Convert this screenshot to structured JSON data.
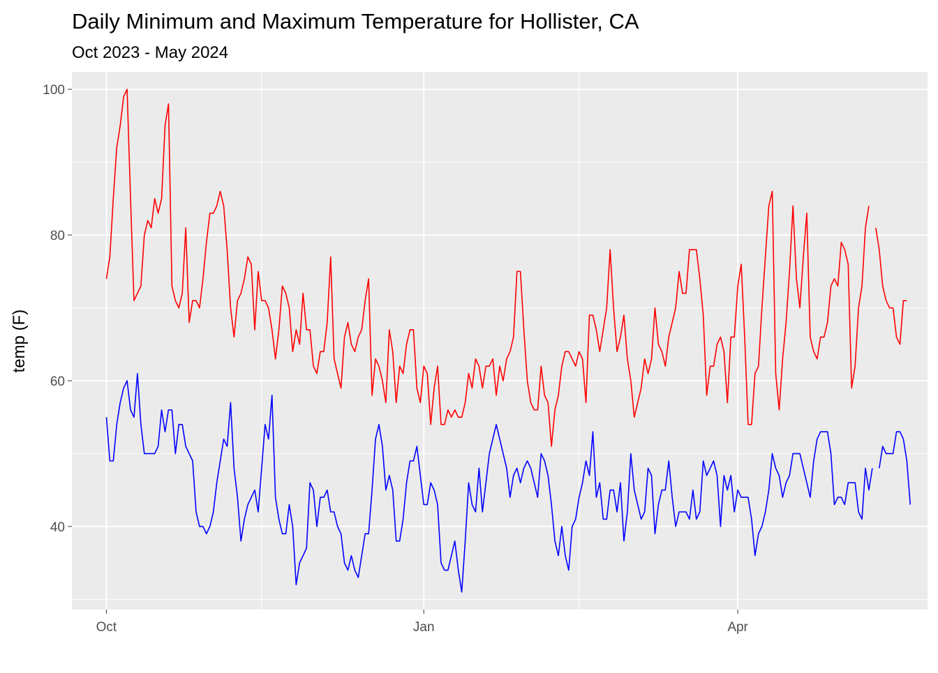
{
  "chart_data": {
    "type": "line",
    "title": "Daily Minimum and Maximum Temperature for Hollister, CA",
    "subtitle": "Oct 2023 - May 2024",
    "xlabel": "",
    "ylabel": "temp (F)",
    "x_start": "2023-10-01",
    "x_end": "2024-05-17",
    "xlim": [
      "2023-09-21",
      "2024-05-26"
    ],
    "ylim": [
      28.6,
      102.4
    ],
    "x_ticks": [
      {
        "date": "2023-10-01",
        "label": "Oct"
      },
      {
        "date": "2024-01-01",
        "label": "Jan"
      },
      {
        "date": "2024-04-01",
        "label": "Apr"
      }
    ],
    "x_minor_breaks": [
      "2023-11-15",
      "2024-02-15"
    ],
    "y_ticks": [
      40,
      60,
      80,
      100
    ],
    "y_minor_breaks": [
      30,
      50,
      70,
      90
    ],
    "grid": true,
    "colors": {
      "panel": "#ebebeb",
      "grid": "#ffffff",
      "axis_text": "#4d4d4d",
      "tick": "#333333",
      "title": "#000000"
    },
    "series": [
      {
        "color": "#ff0000",
        "values": [
          74,
          77,
          85,
          92,
          95,
          99,
          100,
          85,
          71,
          72,
          73,
          80,
          82,
          81,
          85,
          83,
          85,
          95,
          98,
          73,
          71,
          70,
          72,
          81,
          68,
          71,
          71,
          70,
          74,
          79,
          83,
          83,
          84,
          86,
          84,
          78,
          70,
          66,
          71,
          72,
          74,
          77,
          76,
          67,
          75,
          71,
          71,
          70,
          67,
          63,
          67,
          73,
          72,
          70,
          64,
          67,
          65,
          72,
          67,
          67,
          62,
          61,
          64,
          64,
          68,
          77,
          63,
          61,
          59,
          66,
          68,
          65,
          64,
          66,
          67,
          71,
          74,
          58,
          63,
          62,
          60,
          57,
          67,
          64,
          57,
          62,
          61,
          65,
          67,
          67,
          59,
          57,
          62,
          61,
          54,
          59,
          62,
          54,
          54,
          56,
          55,
          56,
          55,
          55,
          57,
          61,
          59,
          63,
          62,
          59,
          62,
          62,
          63,
          58,
          62,
          60,
          63,
          64,
          66,
          75,
          75,
          67,
          60,
          57,
          56,
          56,
          62,
          58,
          57,
          51,
          56,
          58,
          62,
          64,
          64,
          63,
          62,
          64,
          63,
          57,
          69,
          69,
          67,
          64,
          67,
          70,
          78,
          70,
          64,
          66,
          69,
          63,
          60,
          55,
          57,
          59,
          63,
          61,
          63,
          70,
          65,
          64,
          62,
          66,
          68,
          70,
          75,
          72,
          72,
          78,
          78,
          78,
          74,
          69,
          58,
          62,
          62,
          65,
          66,
          64,
          57,
          66,
          66,
          73,
          76,
          66,
          54,
          54,
          61,
          62,
          70,
          77,
          84,
          86,
          61,
          56,
          63,
          68,
          75,
          84,
          74,
          70,
          77,
          83,
          66,
          64,
          63,
          66,
          66,
          68,
          73,
          74,
          73,
          79,
          78,
          76,
          59,
          62,
          70,
          73,
          81,
          84,
          null,
          81,
          78,
          73,
          71,
          70,
          70,
          66,
          65,
          71,
          71
        ]
      },
      {
        "color": "#0000ff",
        "values": [
          55,
          49,
          49,
          54,
          57,
          59,
          60,
          56,
          55,
          61,
          54,
          50,
          50,
          50,
          50,
          51,
          56,
          53,
          56,
          56,
          50,
          54,
          54,
          51,
          50,
          49,
          42,
          40,
          40,
          39,
          40,
          42,
          46,
          49,
          52,
          51,
          57,
          48,
          44,
          38,
          41,
          43,
          44,
          45,
          42,
          48,
          54,
          52,
          58,
          44,
          41,
          39,
          39,
          43,
          40,
          32,
          35,
          36,
          37,
          46,
          45,
          40,
          44,
          44,
          45,
          42,
          42,
          40,
          39,
          35,
          34,
          36,
          34,
          33,
          36,
          39,
          39,
          45,
          52,
          54,
          51,
          45,
          47,
          45,
          38,
          38,
          41,
          46,
          49,
          49,
          51,
          47,
          43,
          43,
          46,
          45,
          43,
          35,
          34,
          34,
          36,
          38,
          34,
          31,
          38,
          46,
          43,
          42,
          48,
          42,
          46,
          50,
          52,
          54,
          52,
          50,
          48,
          44,
          47,
          48,
          46,
          48,
          49,
          48,
          46,
          44,
          50,
          49,
          47,
          43,
          38,
          36,
          40,
          36,
          34,
          40,
          41,
          44,
          46,
          49,
          47,
          53,
          44,
          46,
          41,
          41,
          45,
          45,
          42,
          46,
          38,
          42,
          50,
          45,
          43,
          41,
          42,
          48,
          47,
          39,
          43,
          45,
          45,
          49,
          44,
          40,
          42,
          42,
          42,
          41,
          45,
          41,
          42,
          49,
          47,
          48,
          49,
          47,
          40,
          47,
          45,
          47,
          42,
          45,
          44,
          44,
          44,
          41,
          36,
          39,
          40,
          42,
          45,
          50,
          48,
          47,
          44,
          46,
          47,
          50,
          50,
          50,
          48,
          46,
          44,
          49,
          52,
          53,
          53,
          53,
          50,
          43,
          44,
          44,
          43,
          46,
          46,
          46,
          42,
          41,
          48,
          45,
          48,
          null,
          48,
          51,
          50,
          50,
          50,
          53,
          53,
          52,
          49,
          43
        ]
      }
    ]
  }
}
